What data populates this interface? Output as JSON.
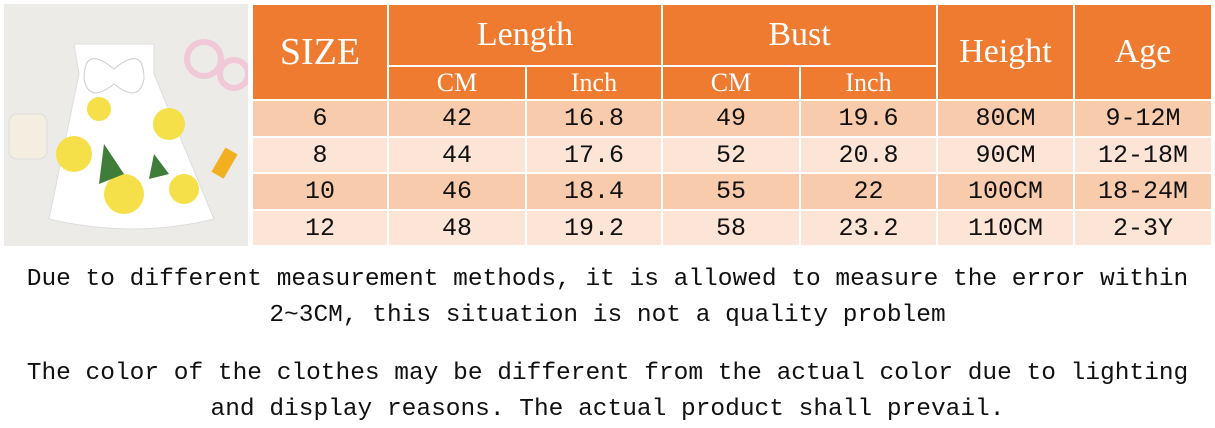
{
  "table": {
    "header": {
      "size": "SIZE",
      "length": "Length",
      "bust": "Bust",
      "height": "Height",
      "age": "Age"
    },
    "subheader": [
      "CM",
      "Inch",
      "CM",
      "Inch"
    ],
    "rows": [
      [
        "6",
        "42",
        "16.8",
        "49",
        "19.6",
        "80CM",
        "9-12M"
      ],
      [
        "8",
        "44",
        "17.6",
        "52",
        "20.8",
        "90CM",
        "12-18M"
      ],
      [
        "10",
        "46",
        "18.4",
        "55",
        "22",
        "100CM",
        "18-24M"
      ],
      [
        "12",
        "48",
        "19.2",
        "58",
        "23.2",
        "110CM",
        "2-3Y"
      ]
    ]
  },
  "notes": [
    "Due to different measurement methods, it is allowed to measure the error within 2~3CM, this situation is not a quality problem",
    "The color of the clothes may be different from the actual color due to lighting and display reasons. The actual product shall prevail."
  ]
}
